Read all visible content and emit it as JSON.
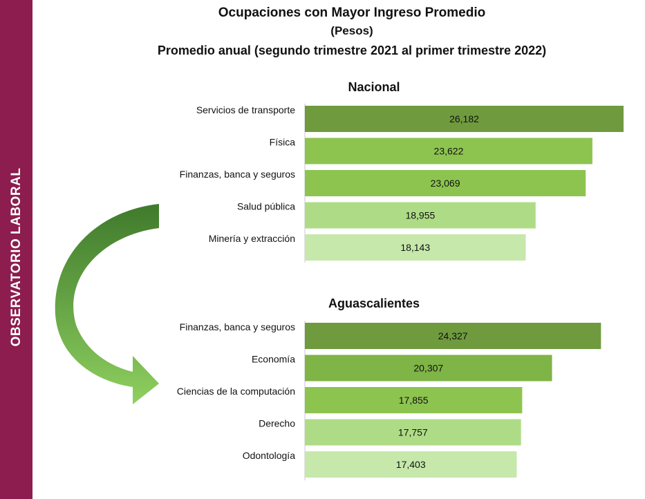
{
  "sidebar": {
    "label": "OBSERVATORIO LABORAL",
    "color": "#8c1d4e"
  },
  "header": {
    "title": "Ocupaciones con Mayor Ingreso Promedio",
    "unit": "(Pesos)",
    "period": "Promedio anual (segundo trimestre 2021 al primer trimestre 2022)"
  },
  "chart_data": [
    {
      "type": "bar",
      "orientation": "horizontal",
      "title": "Nacional",
      "categories": [
        "Servicios de transporte",
        "Física",
        "Finanzas, banca y seguros",
        "Salud pública",
        "Minería y extracción"
      ],
      "values": [
        26182,
        23622,
        23069,
        18955,
        18143
      ],
      "value_labels": [
        "26,182",
        "23,622",
        "23,069",
        "18,955",
        "18,143"
      ],
      "colors": [
        "#6f9a3e",
        "#8dc450",
        "#8dc450",
        "#aedc86",
        "#c6e8ab"
      ]
    },
    {
      "type": "bar",
      "orientation": "horizontal",
      "title": "Aguascalientes",
      "categories": [
        "Finanzas, banca y seguros",
        "Economía",
        "Ciencias de la computación",
        "Derecho",
        "Odontología"
      ],
      "values": [
        24327,
        20307,
        17855,
        17757,
        17403
      ],
      "value_labels": [
        "24,327",
        "20,307",
        "17,855",
        "17,757",
        "17,403"
      ],
      "colors": [
        "#6f9a3e",
        "#7fb446",
        "#8dc450",
        "#aedc86",
        "#c6e8ab"
      ]
    }
  ],
  "arrow_colors": {
    "top": "#4e8a35",
    "bottom": "#84c45a"
  }
}
